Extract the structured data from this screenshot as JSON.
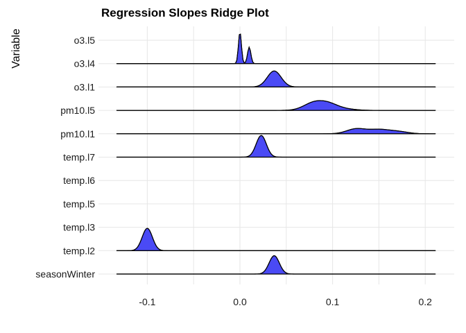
{
  "chart_data": {
    "type": "ridgeline",
    "title": "Regression Slopes Ridge Plot",
    "xlabel": "",
    "ylabel": "Variable",
    "xlim": [
      -0.15,
      0.23
    ],
    "x_ticks": [
      "-0.1",
      "0.0",
      "0.1",
      "0.2"
    ],
    "x_tick_values": [
      -0.1,
      0.0,
      0.1,
      0.2
    ],
    "grid": true,
    "fill_color": "#4a4af5",
    "line_color": "#000000",
    "series": [
      {
        "name": "seasonWinter",
        "support": [
          -0.133,
          0.211
        ],
        "peaks": [
          {
            "mu": 0.037,
            "sigma": 0.0055,
            "h": 0.78
          }
        ]
      },
      {
        "name": "temp.l2",
        "support": [
          -0.133,
          0.211
        ],
        "peaks": [
          {
            "mu": -0.1,
            "sigma": 0.0055,
            "h": 0.95
          }
        ]
      },
      {
        "name": "temp.l3",
        "support": null,
        "peaks": []
      },
      {
        "name": "temp.l5",
        "support": null,
        "peaks": []
      },
      {
        "name": "temp.l6",
        "support": null,
        "peaks": []
      },
      {
        "name": "temp.l7",
        "support": [
          -0.133,
          0.211
        ],
        "peaks": [
          {
            "mu": 0.023,
            "sigma": 0.0055,
            "h": 0.92
          }
        ]
      },
      {
        "name": "pm10.l1",
        "support": [
          -0.133,
          0.211
        ],
        "peaks": [
          {
            "mu": 0.125,
            "sigma": 0.01,
            "h": 0.2
          },
          {
            "mu": 0.15,
            "sigma": 0.012,
            "h": 0.18
          },
          {
            "mu": 0.172,
            "sigma": 0.01,
            "h": 0.08
          }
        ]
      },
      {
        "name": "pm10.l5",
        "support": [
          -0.133,
          0.211
        ],
        "peaks": [
          {
            "mu": 0.08,
            "sigma": 0.011,
            "h": 0.32
          },
          {
            "mu": 0.096,
            "sigma": 0.01,
            "h": 0.22
          },
          {
            "mu": 0.112,
            "sigma": 0.012,
            "h": 0.06
          }
        ]
      },
      {
        "name": "o3.l1",
        "support": [
          -0.133,
          0.211
        ],
        "peaks": [
          {
            "mu": 0.037,
            "sigma": 0.0075,
            "h": 0.68
          }
        ]
      },
      {
        "name": "o3.l4",
        "support": [
          -0.133,
          0.211
        ],
        "peaks": [
          {
            "mu": 0.0,
            "sigma": 0.0016,
            "h": 1.35
          },
          {
            "mu": 0.01,
            "sigma": 0.0018,
            "h": 0.7
          }
        ]
      },
      {
        "name": "o3.l5",
        "support": null,
        "peaks": []
      }
    ]
  }
}
